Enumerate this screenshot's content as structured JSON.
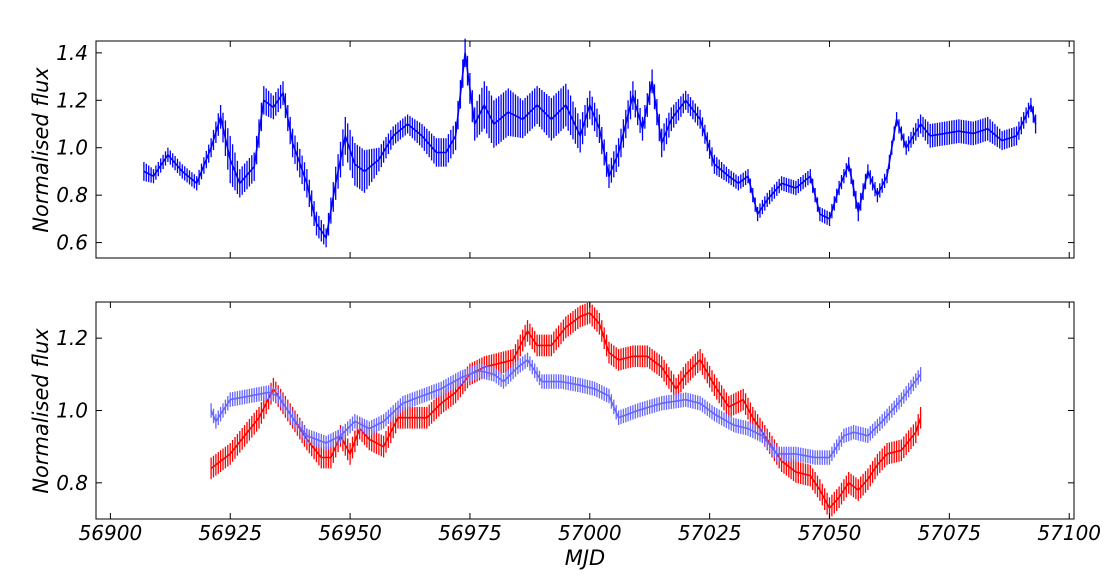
{
  "chart_data": [
    {
      "type": "line",
      "title": "",
      "xlabel": "",
      "ylabel": "Normalised flux",
      "xlim": [
        56897,
        57101
      ],
      "ylim": [
        0.535,
        1.45
      ],
      "yticks": [
        0.6,
        0.8,
        1.0,
        1.2,
        1.4
      ],
      "ytick_labels": [
        "0.6",
        "0.8",
        "1.0",
        "1.2",
        "1.4"
      ],
      "xticks": [
        56925,
        56950,
        56975,
        57000,
        57025,
        57050,
        57075,
        57100
      ],
      "show_xtick_labels": false,
      "error_bars": true,
      "series": [
        {
          "color": "#0000ff",
          "x": [
            56907,
            56909,
            56912,
            56915,
            56918,
            56921,
            56923,
            56925,
            56927,
            56930,
            56932,
            56934,
            56936,
            56938,
            56941,
            56943,
            56945,
            56947,
            56949,
            56951,
            56953,
            56956,
            56959,
            56962,
            56965,
            56968,
            56970,
            56972,
            56974,
            56976,
            56978,
            56980,
            56983,
            56986,
            56989,
            56992,
            56995,
            56998,
            57000,
            57002,
            57004,
            57006,
            57009,
            57011,
            57013,
            57015,
            57017,
            57020,
            57023,
            57026,
            57029,
            57031,
            57033,
            57035,
            57037,
            57040,
            57043,
            57046,
            57048,
            57050,
            57052,
            57054,
            57056,
            57058,
            57060,
            57062,
            57064,
            57066,
            57069,
            57071,
            57074,
            57077,
            57080,
            57083,
            57086,
            57089,
            57092,
            57093
          ],
          "y": [
            0.9,
            0.88,
            0.97,
            0.9,
            0.85,
            1.0,
            1.13,
            0.95,
            0.85,
            0.92,
            1.2,
            1.17,
            1.23,
            1.02,
            0.85,
            0.68,
            0.62,
            0.85,
            1.05,
            0.93,
            0.9,
            0.95,
            1.05,
            1.1,
            1.05,
            0.98,
            0.98,
            1.05,
            1.4,
            1.1,
            1.18,
            1.1,
            1.15,
            1.12,
            1.18,
            1.12,
            1.18,
            1.05,
            1.18,
            1.08,
            0.88,
            0.98,
            1.22,
            1.08,
            1.28,
            1.02,
            1.12,
            1.2,
            1.12,
            0.93,
            0.88,
            0.85,
            0.88,
            0.72,
            0.78,
            0.85,
            0.83,
            0.88,
            0.72,
            0.7,
            0.83,
            0.93,
            0.73,
            0.9,
            0.8,
            0.88,
            1.12,
            1.0,
            1.1,
            1.05,
            1.06,
            1.07,
            1.06,
            1.08,
            1.03,
            1.05,
            1.18,
            1.1
          ],
          "err": [
            0.04,
            0.03,
            0.03,
            0.03,
            0.03,
            0.04,
            0.05,
            0.1,
            0.06,
            0.06,
            0.06,
            0.05,
            0.05,
            0.06,
            0.06,
            0.05,
            0.04,
            0.07,
            0.08,
            0.09,
            0.09,
            0.05,
            0.04,
            0.04,
            0.05,
            0.06,
            0.06,
            0.06,
            0.06,
            0.07,
            0.1,
            0.1,
            0.1,
            0.08,
            0.08,
            0.09,
            0.09,
            0.07,
            0.06,
            0.06,
            0.05,
            0.06,
            0.06,
            0.05,
            0.05,
            0.06,
            0.05,
            0.04,
            0.04,
            0.04,
            0.03,
            0.03,
            0.03,
            0.03,
            0.03,
            0.03,
            0.03,
            0.03,
            0.03,
            0.03,
            0.03,
            0.03,
            0.04,
            0.03,
            0.03,
            0.03,
            0.03,
            0.03,
            0.04,
            0.05,
            0.05,
            0.05,
            0.05,
            0.05,
            0.04,
            0.04,
            0.03,
            0.04
          ]
        }
      ]
    },
    {
      "type": "line",
      "title": "",
      "xlabel": "MJD",
      "ylabel": "Normalised flux",
      "xlim": [
        56897,
        57101
      ],
      "ylim": [
        0.7,
        1.3
      ],
      "yticks": [
        0.8,
        1.0,
        1.2
      ],
      "ytick_labels": [
        "0.8",
        "1.0",
        "1.2"
      ],
      "xticks": [
        56900,
        56925,
        56950,
        56975,
        57000,
        57025,
        57050,
        57075,
        57100
      ],
      "xtick_labels": [
        "56900",
        "56925",
        "56950",
        "56975",
        "57000",
        "57025",
        "57050",
        "57075",
        "57100"
      ],
      "error_bars": true,
      "series": [
        {
          "color": "#ff0000",
          "x": [
            56921,
            56925,
            56928,
            56931,
            56934,
            56936,
            56938,
            56941,
            56944,
            56946,
            56948,
            56950,
            56952,
            56954,
            56957,
            56960,
            56963,
            56966,
            56969,
            56972,
            56975,
            56978,
            56981,
            56984,
            56987,
            56989,
            56992,
            56995,
            56998,
            57000,
            57002,
            57004,
            57006,
            57009,
            57012,
            57015,
            57018,
            57020,
            57023,
            57026,
            57029,
            57032,
            57034,
            57037,
            57040,
            57043,
            57046,
            57048,
            57050,
            57052,
            57054,
            57056,
            57058,
            57060,
            57062,
            57065,
            57068,
            57069
          ],
          "y": [
            0.84,
            0.88,
            0.93,
            0.98,
            1.06,
            1.02,
            0.98,
            0.92,
            0.87,
            0.87,
            0.93,
            0.88,
            0.95,
            0.92,
            0.9,
            0.98,
            0.98,
            0.98,
            1.02,
            1.05,
            1.1,
            1.12,
            1.13,
            1.14,
            1.22,
            1.18,
            1.18,
            1.23,
            1.26,
            1.27,
            1.24,
            1.16,
            1.14,
            1.15,
            1.15,
            1.12,
            1.06,
            1.1,
            1.14,
            1.07,
            1.01,
            1.03,
            0.98,
            0.92,
            0.86,
            0.83,
            0.82,
            0.78,
            0.73,
            0.76,
            0.8,
            0.78,
            0.81,
            0.85,
            0.88,
            0.89,
            0.94,
            0.98
          ],
          "err": [
            0.03,
            0.03,
            0.03,
            0.03,
            0.03,
            0.03,
            0.03,
            0.03,
            0.03,
            0.03,
            0.03,
            0.03,
            0.03,
            0.03,
            0.03,
            0.03,
            0.03,
            0.03,
            0.03,
            0.03,
            0.03,
            0.03,
            0.03,
            0.03,
            0.03,
            0.03,
            0.03,
            0.03,
            0.03,
            0.03,
            0.03,
            0.03,
            0.03,
            0.03,
            0.03,
            0.03,
            0.03,
            0.03,
            0.03,
            0.03,
            0.03,
            0.03,
            0.03,
            0.03,
            0.03,
            0.03,
            0.03,
            0.03,
            0.03,
            0.03,
            0.03,
            0.03,
            0.03,
            0.03,
            0.03,
            0.03,
            0.03,
            0.03
          ]
        },
        {
          "color": "#6666ff",
          "x": [
            56921,
            56922,
            56925,
            56929,
            56933,
            56935,
            56938,
            56941,
            56945,
            56948,
            56951,
            56954,
            56957,
            56961,
            56965,
            56969,
            56973,
            56977,
            56980,
            56982,
            56985,
            56987,
            56990,
            56994,
            56998,
            57001,
            57004,
            57006,
            57010,
            57015,
            57020,
            57023,
            57026,
            57030,
            57033,
            57036,
            57039,
            57043,
            57047,
            57050,
            57053,
            57055,
            57058,
            57061,
            57065,
            57069
          ],
          "y": [
            1.0,
            0.97,
            1.03,
            1.04,
            1.05,
            1.04,
            0.98,
            0.93,
            0.91,
            0.93,
            0.97,
            0.95,
            0.97,
            1.02,
            1.04,
            1.06,
            1.09,
            1.11,
            1.1,
            1.08,
            1.12,
            1.14,
            1.08,
            1.08,
            1.07,
            1.06,
            1.04,
            0.98,
            1.0,
            1.02,
            1.03,
            1.02,
            0.99,
            0.96,
            0.95,
            0.93,
            0.88,
            0.88,
            0.87,
            0.87,
            0.93,
            0.94,
            0.93,
            0.97,
            1.03,
            1.1
          ],
          "err": [
            0.02,
            0.02,
            0.02,
            0.02,
            0.02,
            0.02,
            0.02,
            0.02,
            0.02,
            0.02,
            0.02,
            0.02,
            0.02,
            0.02,
            0.02,
            0.02,
            0.02,
            0.02,
            0.02,
            0.02,
            0.02,
            0.02,
            0.02,
            0.02,
            0.02,
            0.02,
            0.02,
            0.02,
            0.02,
            0.02,
            0.02,
            0.02,
            0.02,
            0.02,
            0.02,
            0.02,
            0.02,
            0.02,
            0.02,
            0.02,
            0.02,
            0.02,
            0.02,
            0.02,
            0.02,
            0.02
          ]
        }
      ]
    }
  ]
}
